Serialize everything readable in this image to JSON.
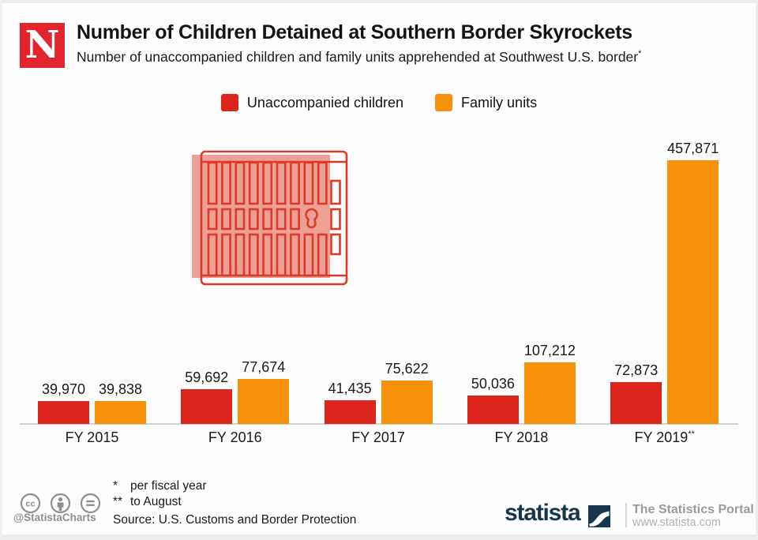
{
  "header": {
    "logo_letter": "N",
    "title": "Number of Children Detained at Southern Border Skyrockets",
    "subtitle": "Number of unaccompanied children and family units apprehended at Southwest U.S. border",
    "subtitle_note": "*"
  },
  "legend": {
    "items": [
      {
        "label": "Unaccompanied children",
        "color": "#dc251c"
      },
      {
        "label": "Family units",
        "color": "#f7910a"
      }
    ]
  },
  "chart_data": {
    "type": "bar",
    "orientation": "grouped-vertical",
    "categories": [
      "FY 2015",
      "FY 2016",
      "FY 2017",
      "FY 2018",
      "FY 2019**"
    ],
    "series": [
      {
        "name": "Unaccompanied children",
        "color": "#dc251c",
        "values": [
          39970,
          59692,
          41435,
          50036,
          72873
        ]
      },
      {
        "name": "Family units",
        "color": "#f7910a",
        "values": [
          39838,
          77674,
          75622,
          107212,
          457871
        ]
      }
    ],
    "value_labels_visible": true,
    "value_label_format": "thousands-comma",
    "ylim": [
      0,
      460000
    ],
    "grid": false,
    "legend_position": "top"
  },
  "icons": {
    "gate_icon_color": "#dd3b29",
    "gate_fill_color": "rgba(224,74,57,0.52)",
    "license_icons": [
      "cc",
      "attribution",
      "no-derivatives"
    ]
  },
  "footer": {
    "handle": "@StatistaCharts",
    "footnotes": [
      {
        "marker": "*",
        "text": "per fiscal year"
      },
      {
        "marker": "**",
        "text": "to August"
      }
    ],
    "source": "Source: U.S. Customs and Border Protection",
    "brand": {
      "wordmark": "statista",
      "tagline": "The Statistics Portal",
      "url": "www.statista.com"
    }
  },
  "colors": {
    "newsweek_red": "#e5252d",
    "statista_navy": "#17364e",
    "axis_gray": "#cfcfcf"
  }
}
